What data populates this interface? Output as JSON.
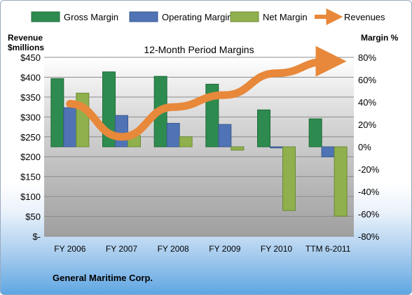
{
  "company": "General Maritime Corp.",
  "chart_data": {
    "type": "bar",
    "title": "12-Month Period Margins",
    "y_left_label_line1": "Revenue",
    "y_left_label_line2": "$millions",
    "y_right_label": "Margin %",
    "categories": [
      "FY 2006",
      "FY 2007",
      "FY 2008",
      "FY 2009",
      "FY 2010",
      "TTM 6-2011"
    ],
    "y_left_ticks": [
      "$450",
      "$400",
      "$350",
      "$300",
      "$250",
      "$200",
      "$150",
      "$100",
      "$50",
      "$-"
    ],
    "y_right_ticks": [
      "80%",
      "60%",
      "40%",
      "20%",
      "0%",
      "-20%",
      "-40%",
      "-60%",
      "-80%"
    ],
    "ylim_left": [
      0,
      450
    ],
    "ylim_right": [
      -80,
      80
    ],
    "legend_position": "top",
    "series": [
      {
        "name": "Gross Margin",
        "axis": "right",
        "kind": "bar",
        "color": "#2e8b4f",
        "values": [
          61,
          67,
          63,
          56,
          33,
          25
        ]
      },
      {
        "name": "Operating Margin",
        "axis": "right",
        "kind": "bar",
        "color": "#4f73b5",
        "values": [
          35,
          28,
          21,
          20,
          -1,
          -9
        ]
      },
      {
        "name": "Net Margin",
        "axis": "right",
        "kind": "bar",
        "color": "#8fb04c",
        "values": [
          48,
          10,
          9,
          -3,
          -57,
          -62
        ]
      },
      {
        "name": "Revenues",
        "axis": "left",
        "kind": "line",
        "color": "#e8883a",
        "values": [
          333,
          250,
          325,
          355,
          410,
          440
        ]
      }
    ]
  }
}
